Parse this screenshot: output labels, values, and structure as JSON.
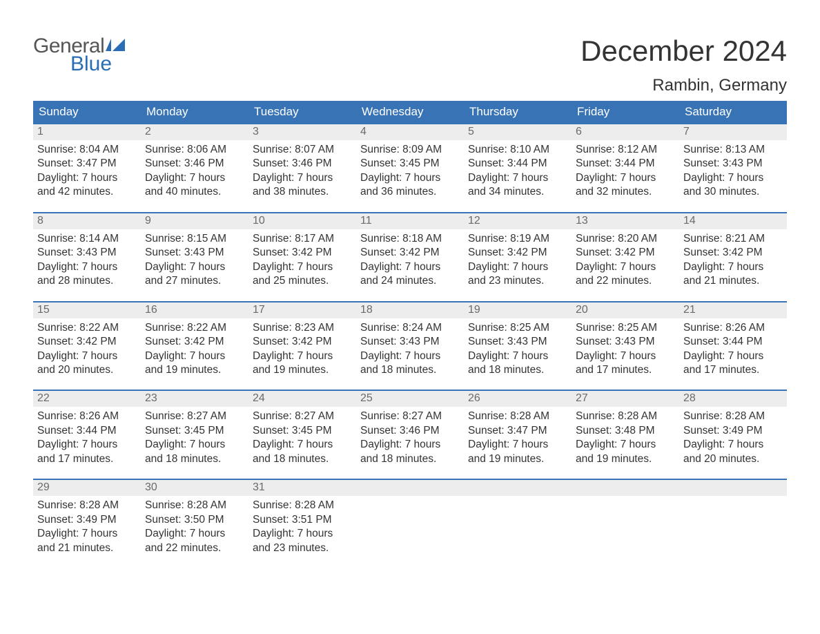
{
  "logo": {
    "general": "General",
    "blue": "Blue"
  },
  "title": "December 2024",
  "location": "Rambin, Germany",
  "colors": {
    "header_bg": "#3874b5",
    "header_text": "#ffffff",
    "daynum_bg": "#ededed",
    "daynum_text": "#6a6a6a",
    "body_text": "#333333",
    "week_border": "#3874b5",
    "logo_blue": "#2a6db5",
    "logo_gray": "#555555"
  },
  "day_names": [
    "Sunday",
    "Monday",
    "Tuesday",
    "Wednesday",
    "Thursday",
    "Friday",
    "Saturday"
  ],
  "weeks": [
    [
      {
        "n": "1",
        "sunrise": "Sunrise: 8:04 AM",
        "sunset": "Sunset: 3:47 PM",
        "d1": "Daylight: 7 hours",
        "d2": "and 42 minutes."
      },
      {
        "n": "2",
        "sunrise": "Sunrise: 8:06 AM",
        "sunset": "Sunset: 3:46 PM",
        "d1": "Daylight: 7 hours",
        "d2": "and 40 minutes."
      },
      {
        "n": "3",
        "sunrise": "Sunrise: 8:07 AM",
        "sunset": "Sunset: 3:46 PM",
        "d1": "Daylight: 7 hours",
        "d2": "and 38 minutes."
      },
      {
        "n": "4",
        "sunrise": "Sunrise: 8:09 AM",
        "sunset": "Sunset: 3:45 PM",
        "d1": "Daylight: 7 hours",
        "d2": "and 36 minutes."
      },
      {
        "n": "5",
        "sunrise": "Sunrise: 8:10 AM",
        "sunset": "Sunset: 3:44 PM",
        "d1": "Daylight: 7 hours",
        "d2": "and 34 minutes."
      },
      {
        "n": "6",
        "sunrise": "Sunrise: 8:12 AM",
        "sunset": "Sunset: 3:44 PM",
        "d1": "Daylight: 7 hours",
        "d2": "and 32 minutes."
      },
      {
        "n": "7",
        "sunrise": "Sunrise: 8:13 AM",
        "sunset": "Sunset: 3:43 PM",
        "d1": "Daylight: 7 hours",
        "d2": "and 30 minutes."
      }
    ],
    [
      {
        "n": "8",
        "sunrise": "Sunrise: 8:14 AM",
        "sunset": "Sunset: 3:43 PM",
        "d1": "Daylight: 7 hours",
        "d2": "and 28 minutes."
      },
      {
        "n": "9",
        "sunrise": "Sunrise: 8:15 AM",
        "sunset": "Sunset: 3:43 PM",
        "d1": "Daylight: 7 hours",
        "d2": "and 27 minutes."
      },
      {
        "n": "10",
        "sunrise": "Sunrise: 8:17 AM",
        "sunset": "Sunset: 3:42 PM",
        "d1": "Daylight: 7 hours",
        "d2": "and 25 minutes."
      },
      {
        "n": "11",
        "sunrise": "Sunrise: 8:18 AM",
        "sunset": "Sunset: 3:42 PM",
        "d1": "Daylight: 7 hours",
        "d2": "and 24 minutes."
      },
      {
        "n": "12",
        "sunrise": "Sunrise: 8:19 AM",
        "sunset": "Sunset: 3:42 PM",
        "d1": "Daylight: 7 hours",
        "d2": "and 23 minutes."
      },
      {
        "n": "13",
        "sunrise": "Sunrise: 8:20 AM",
        "sunset": "Sunset: 3:42 PM",
        "d1": "Daylight: 7 hours",
        "d2": "and 22 minutes."
      },
      {
        "n": "14",
        "sunrise": "Sunrise: 8:21 AM",
        "sunset": "Sunset: 3:42 PM",
        "d1": "Daylight: 7 hours",
        "d2": "and 21 minutes."
      }
    ],
    [
      {
        "n": "15",
        "sunrise": "Sunrise: 8:22 AM",
        "sunset": "Sunset: 3:42 PM",
        "d1": "Daylight: 7 hours",
        "d2": "and 20 minutes."
      },
      {
        "n": "16",
        "sunrise": "Sunrise: 8:22 AM",
        "sunset": "Sunset: 3:42 PM",
        "d1": "Daylight: 7 hours",
        "d2": "and 19 minutes."
      },
      {
        "n": "17",
        "sunrise": "Sunrise: 8:23 AM",
        "sunset": "Sunset: 3:42 PM",
        "d1": "Daylight: 7 hours",
        "d2": "and 19 minutes."
      },
      {
        "n": "18",
        "sunrise": "Sunrise: 8:24 AM",
        "sunset": "Sunset: 3:43 PM",
        "d1": "Daylight: 7 hours",
        "d2": "and 18 minutes."
      },
      {
        "n": "19",
        "sunrise": "Sunrise: 8:25 AM",
        "sunset": "Sunset: 3:43 PM",
        "d1": "Daylight: 7 hours",
        "d2": "and 18 minutes."
      },
      {
        "n": "20",
        "sunrise": "Sunrise: 8:25 AM",
        "sunset": "Sunset: 3:43 PM",
        "d1": "Daylight: 7 hours",
        "d2": "and 17 minutes."
      },
      {
        "n": "21",
        "sunrise": "Sunrise: 8:26 AM",
        "sunset": "Sunset: 3:44 PM",
        "d1": "Daylight: 7 hours",
        "d2": "and 17 minutes."
      }
    ],
    [
      {
        "n": "22",
        "sunrise": "Sunrise: 8:26 AM",
        "sunset": "Sunset: 3:44 PM",
        "d1": "Daylight: 7 hours",
        "d2": "and 17 minutes."
      },
      {
        "n": "23",
        "sunrise": "Sunrise: 8:27 AM",
        "sunset": "Sunset: 3:45 PM",
        "d1": "Daylight: 7 hours",
        "d2": "and 18 minutes."
      },
      {
        "n": "24",
        "sunrise": "Sunrise: 8:27 AM",
        "sunset": "Sunset: 3:45 PM",
        "d1": "Daylight: 7 hours",
        "d2": "and 18 minutes."
      },
      {
        "n": "25",
        "sunrise": "Sunrise: 8:27 AM",
        "sunset": "Sunset: 3:46 PM",
        "d1": "Daylight: 7 hours",
        "d2": "and 18 minutes."
      },
      {
        "n": "26",
        "sunrise": "Sunrise: 8:28 AM",
        "sunset": "Sunset: 3:47 PM",
        "d1": "Daylight: 7 hours",
        "d2": "and 19 minutes."
      },
      {
        "n": "27",
        "sunrise": "Sunrise: 8:28 AM",
        "sunset": "Sunset: 3:48 PM",
        "d1": "Daylight: 7 hours",
        "d2": "and 19 minutes."
      },
      {
        "n": "28",
        "sunrise": "Sunrise: 8:28 AM",
        "sunset": "Sunset: 3:49 PM",
        "d1": "Daylight: 7 hours",
        "d2": "and 20 minutes."
      }
    ],
    [
      {
        "n": "29",
        "sunrise": "Sunrise: 8:28 AM",
        "sunset": "Sunset: 3:49 PM",
        "d1": "Daylight: 7 hours",
        "d2": "and 21 minutes."
      },
      {
        "n": "30",
        "sunrise": "Sunrise: 8:28 AM",
        "sunset": "Sunset: 3:50 PM",
        "d1": "Daylight: 7 hours",
        "d2": "and 22 minutes."
      },
      {
        "n": "31",
        "sunrise": "Sunrise: 8:28 AM",
        "sunset": "Sunset: 3:51 PM",
        "d1": "Daylight: 7 hours",
        "d2": "and 23 minutes."
      },
      {
        "empty": true
      },
      {
        "empty": true
      },
      {
        "empty": true
      },
      {
        "empty": true
      }
    ]
  ]
}
